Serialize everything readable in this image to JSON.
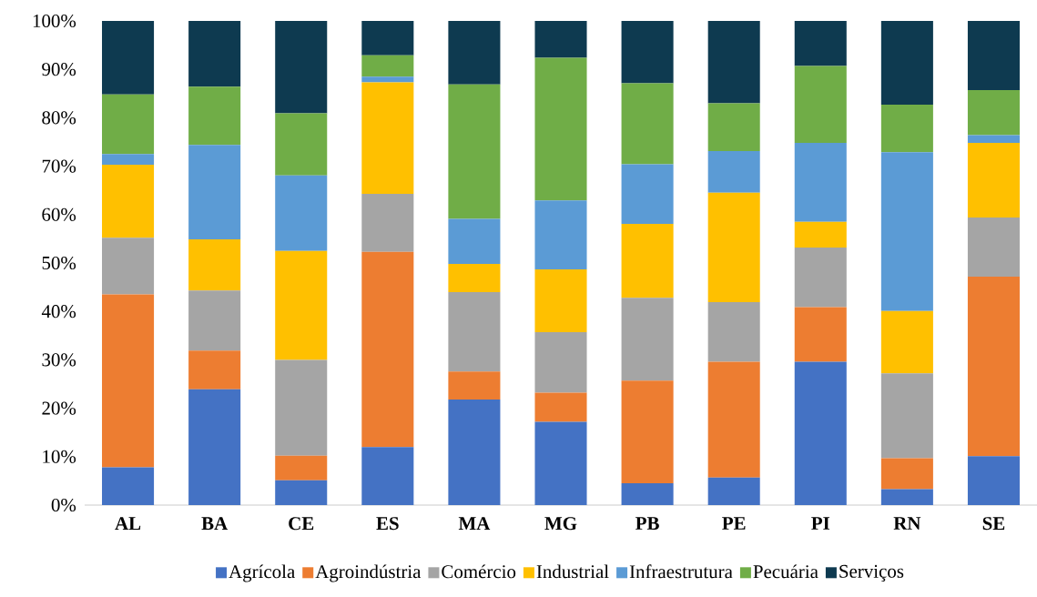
{
  "chart_data": {
    "type": "bar",
    "stacked": true,
    "legend": "bottom",
    "categories": [
      "AL",
      "BA",
      "CE",
      "ES",
      "MA",
      "MG",
      "PB",
      "PE",
      "PI",
      "RN",
      "SE"
    ],
    "ylim": [
      0,
      100
    ],
    "yticks": [
      {
        "value": 0,
        "label": "0%"
      },
      {
        "value": 10,
        "label": "10%"
      },
      {
        "value": 20,
        "label": "20%"
      },
      {
        "value": 30,
        "label": "30%"
      },
      {
        "value": 40,
        "label": "40%"
      },
      {
        "value": 50,
        "label": "50%"
      },
      {
        "value": 60,
        "label": "60%"
      },
      {
        "value": 70,
        "label": "70%"
      },
      {
        "value": 80,
        "label": "80%"
      },
      {
        "value": 90,
        "label": "90%"
      },
      {
        "value": 100,
        "label": "100%"
      }
    ],
    "series": [
      {
        "name": "Agrícola",
        "color": "#4472c4",
        "values": [
          7.8,
          23.9,
          5.1,
          12.0,
          21.8,
          17.2,
          4.5,
          5.7,
          29.6,
          3.3,
          10.1
        ]
      },
      {
        "name": "Agroindústria",
        "color": "#ed7d31",
        "values": [
          35.7,
          8.0,
          5.1,
          40.3,
          5.8,
          6.0,
          21.2,
          23.9,
          11.3,
          6.4,
          37.1
        ]
      },
      {
        "name": "Comércio",
        "color": "#a5a5a5",
        "values": [
          11.7,
          12.4,
          19.8,
          12.0,
          16.4,
          12.5,
          17.1,
          12.3,
          12.3,
          17.5,
          12.2
        ]
      },
      {
        "name": "Industrial",
        "color": "#ffc000",
        "values": [
          15.1,
          10.6,
          22.5,
          23.0,
          5.8,
          13.0,
          15.3,
          22.6,
          5.3,
          12.9,
          15.4
        ]
      },
      {
        "name": "Infraestrutura",
        "color": "#5b9bd5",
        "values": [
          2.2,
          19.5,
          15.6,
          1.2,
          9.3,
          14.2,
          12.3,
          8.6,
          16.3,
          32.8,
          1.6
        ]
      },
      {
        "name": "Pecuária",
        "color": "#70ad47",
        "values": [
          12.3,
          12.0,
          12.8,
          4.4,
          27.8,
          29.5,
          16.7,
          9.9,
          15.9,
          9.8,
          9.3
        ]
      },
      {
        "name": "Serviços",
        "color": "#0e3a50",
        "values": [
          15.2,
          13.6,
          19.1,
          7.1,
          13.1,
          7.6,
          12.9,
          17.0,
          9.3,
          17.3,
          14.3
        ]
      }
    ]
  }
}
